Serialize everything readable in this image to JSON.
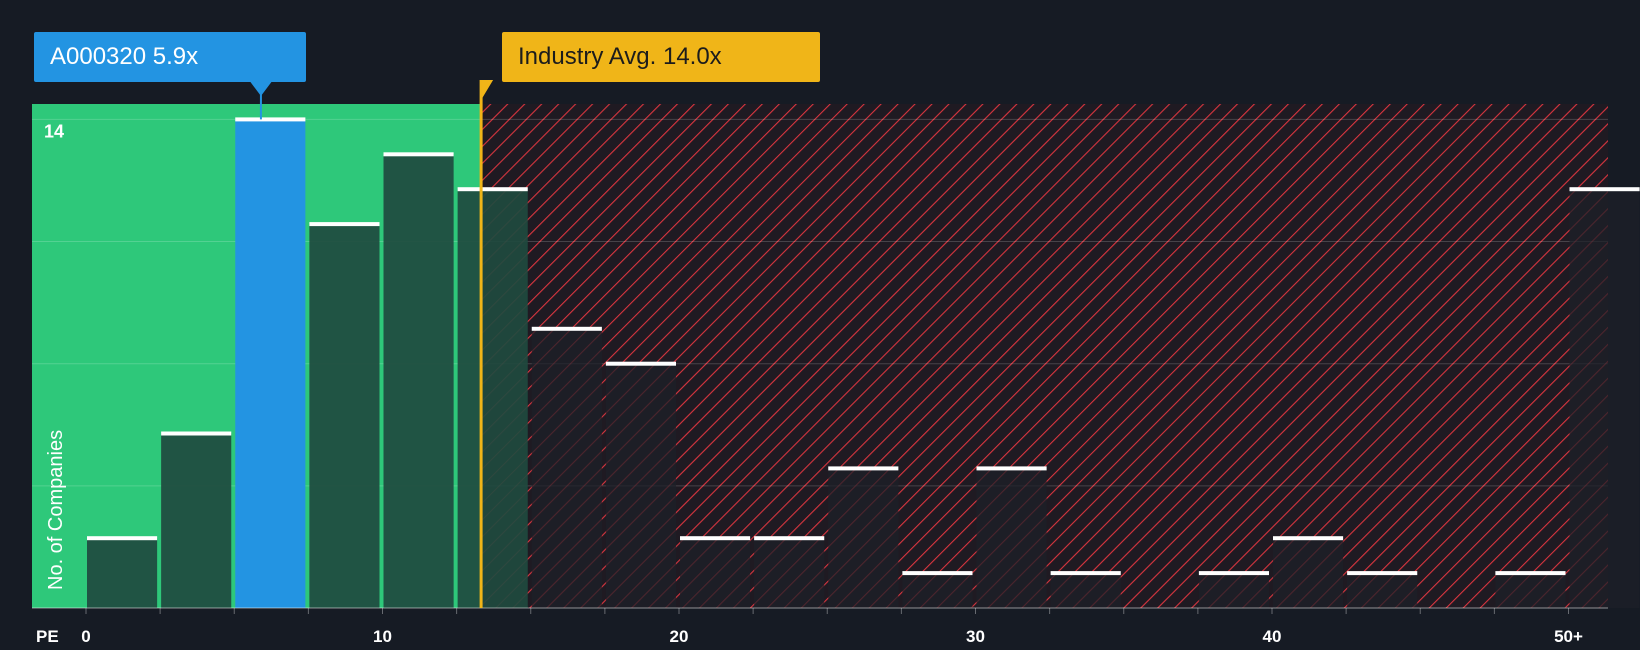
{
  "chart_data": {
    "type": "bar",
    "title": "",
    "xlabel": "PE",
    "ylabel": "No. of Companies",
    "xlim": [
      0,
      51.5
    ],
    "ylim": [
      0,
      14.5
    ],
    "x_ticks": [
      {
        "value": 0,
        "label": "0"
      },
      {
        "value": 10,
        "label": "10"
      },
      {
        "value": 20,
        "label": "20"
      },
      {
        "value": 30,
        "label": "30"
      },
      {
        "value": 40,
        "label": "40"
      },
      {
        "value": 50,
        "label": "50+"
      }
    ],
    "y_ticks": [
      {
        "value": 14,
        "label": "14"
      }
    ],
    "y_gridlines": [
      3.5,
      7,
      10.5,
      14
    ],
    "bin_width": 2.5,
    "bins": [
      {
        "start": 0,
        "value": 2
      },
      {
        "start": 2.5,
        "value": 5
      },
      {
        "start": 5,
        "value": 14,
        "highlight": true
      },
      {
        "start": 7.5,
        "value": 11
      },
      {
        "start": 10,
        "value": 13
      },
      {
        "start": 12.5,
        "value": 12
      },
      {
        "start": 15,
        "value": 8
      },
      {
        "start": 17.5,
        "value": 7
      },
      {
        "start": 20,
        "value": 2
      },
      {
        "start": 22.5,
        "value": 2
      },
      {
        "start": 25,
        "value": 4
      },
      {
        "start": 27.5,
        "value": 1
      },
      {
        "start": 30,
        "value": 4
      },
      {
        "start": 32.5,
        "value": 1
      },
      {
        "start": 35,
        "value": 0
      },
      {
        "start": 37.5,
        "value": 1
      },
      {
        "start": 40,
        "value": 2
      },
      {
        "start": 42.5,
        "value": 1
      },
      {
        "start": 45,
        "value": 0
      },
      {
        "start": 47.5,
        "value": 1
      },
      {
        "start": 50,
        "value": 12
      }
    ],
    "company": {
      "label": "A000320 5.9x",
      "value": 5.9
    },
    "industry_avg": {
      "label": "Industry Avg. 14.0x",
      "value": 14.0
    }
  },
  "colors": {
    "background": "#161b24",
    "undervalued_zone": "#2ec87a",
    "overvalued_hatch": "#d9353f",
    "bar_dark": "#1f4a3f",
    "bar_highlight": "#2394e2",
    "bar_overvalued": "#1e2028",
    "bar_cap": "#ffffff",
    "company_callout": "#2394e2",
    "industry_callout": "#f0b518"
  }
}
